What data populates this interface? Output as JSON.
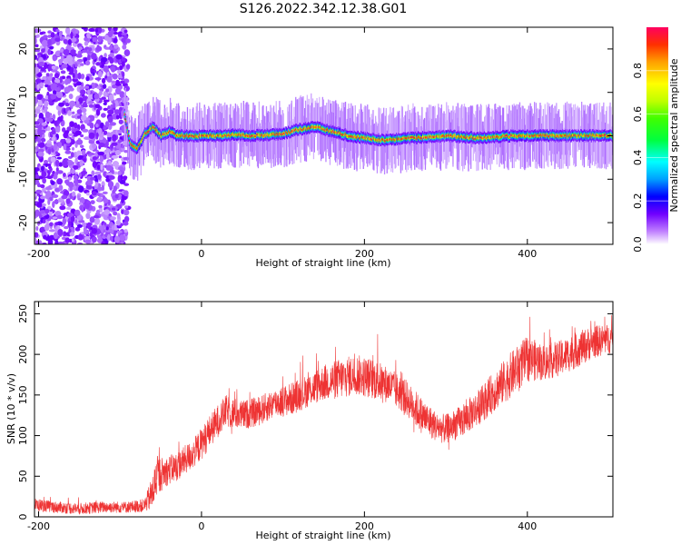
{
  "figure_title": "S126.2022.342.12.38.G01",
  "chart_data": [
    {
      "type": "heatmap",
      "xlabel": "Height of straight line (km)",
      "ylabel": "Frequency (Hz)",
      "xlim": [
        -205,
        505
      ],
      "ylim": [
        -25,
        25
      ],
      "xticks": [
        -200,
        0,
        200,
        400
      ],
      "yticks": [
        -20,
        -10,
        0,
        10,
        20
      ],
      "colorbar": {
        "label": "Normalized spectral amplitude",
        "range": [
          0.0,
          1.0
        ],
        "ticks": [
          0.0,
          0.2,
          0.4,
          0.6,
          0.8
        ],
        "colors": [
          "#ffffff",
          "#b070ff",
          "#7000ff",
          "#0000ff",
          "#00a0ff",
          "#00ffff",
          "#00ff40",
          "#40ff00",
          "#c0ff00",
          "#ffff00",
          "#ffa000",
          "#ff3000",
          "#ff0060"
        ]
      },
      "noise_region_x": [
        -205,
        -90
      ],
      "center_frequency_profile": {
        "x": [
          -95,
          -88,
          -80,
          -70,
          -60,
          -50,
          -40,
          -30,
          -20,
          0,
          20,
          40,
          60,
          80,
          100,
          120,
          140,
          160,
          180,
          200,
          220,
          260,
          300,
          340,
          380,
          420,
          460,
          500
        ],
        "hz": [
          5,
          -2,
          -3,
          0.5,
          2,
          0,
          1,
          0,
          0,
          0,
          0,
          0.3,
          0,
          0.2,
          0.5,
          1.5,
          2,
          1,
          0,
          -0.5,
          -1,
          -0.5,
          0,
          -0.5,
          0,
          0,
          0,
          0
        ]
      }
    },
    {
      "type": "line",
      "xlabel": "Height of straight line (km)",
      "ylabel": "SNR (10 * v/v)",
      "xlim": [
        -205,
        505
      ],
      "ylim": [
        0,
        265
      ],
      "xticks": [
        -200,
        0,
        200,
        400
      ],
      "yticks": [
        0,
        50,
        100,
        150,
        200,
        250
      ],
      "line_color": "#ee3333",
      "series": [
        {
          "x": [
            -205,
            -180,
            -150,
            -120,
            -90,
            -70,
            -60,
            -55,
            -45,
            -30,
            -10,
            0,
            10,
            20,
            30,
            50,
            70,
            90,
            110,
            130,
            150,
            170,
            190,
            210,
            230,
            250,
            270,
            290,
            300,
            320,
            340,
            360,
            380,
            400,
            420,
            440,
            460,
            480,
            505
          ],
          "y": [
            15,
            12,
            10,
            12,
            12,
            14,
            30,
            50,
            55,
            62,
            78,
            90,
            105,
            118,
            130,
            125,
            130,
            140,
            145,
            155,
            165,
            170,
            175,
            170,
            162,
            148,
            125,
            110,
            108,
            118,
            135,
            155,
            175,
            195,
            190,
            195,
            205,
            215,
            220
          ],
          "spread": [
            8,
            7,
            7,
            7,
            7,
            8,
            22,
            25,
            18,
            18,
            18,
            20,
            20,
            20,
            20,
            18,
            18,
            18,
            20,
            20,
            22,
            25,
            25,
            25,
            22,
            22,
            22,
            18,
            18,
            20,
            22,
            25,
            28,
            28,
            22,
            22,
            22,
            20,
            18
          ]
        }
      ]
    }
  ]
}
